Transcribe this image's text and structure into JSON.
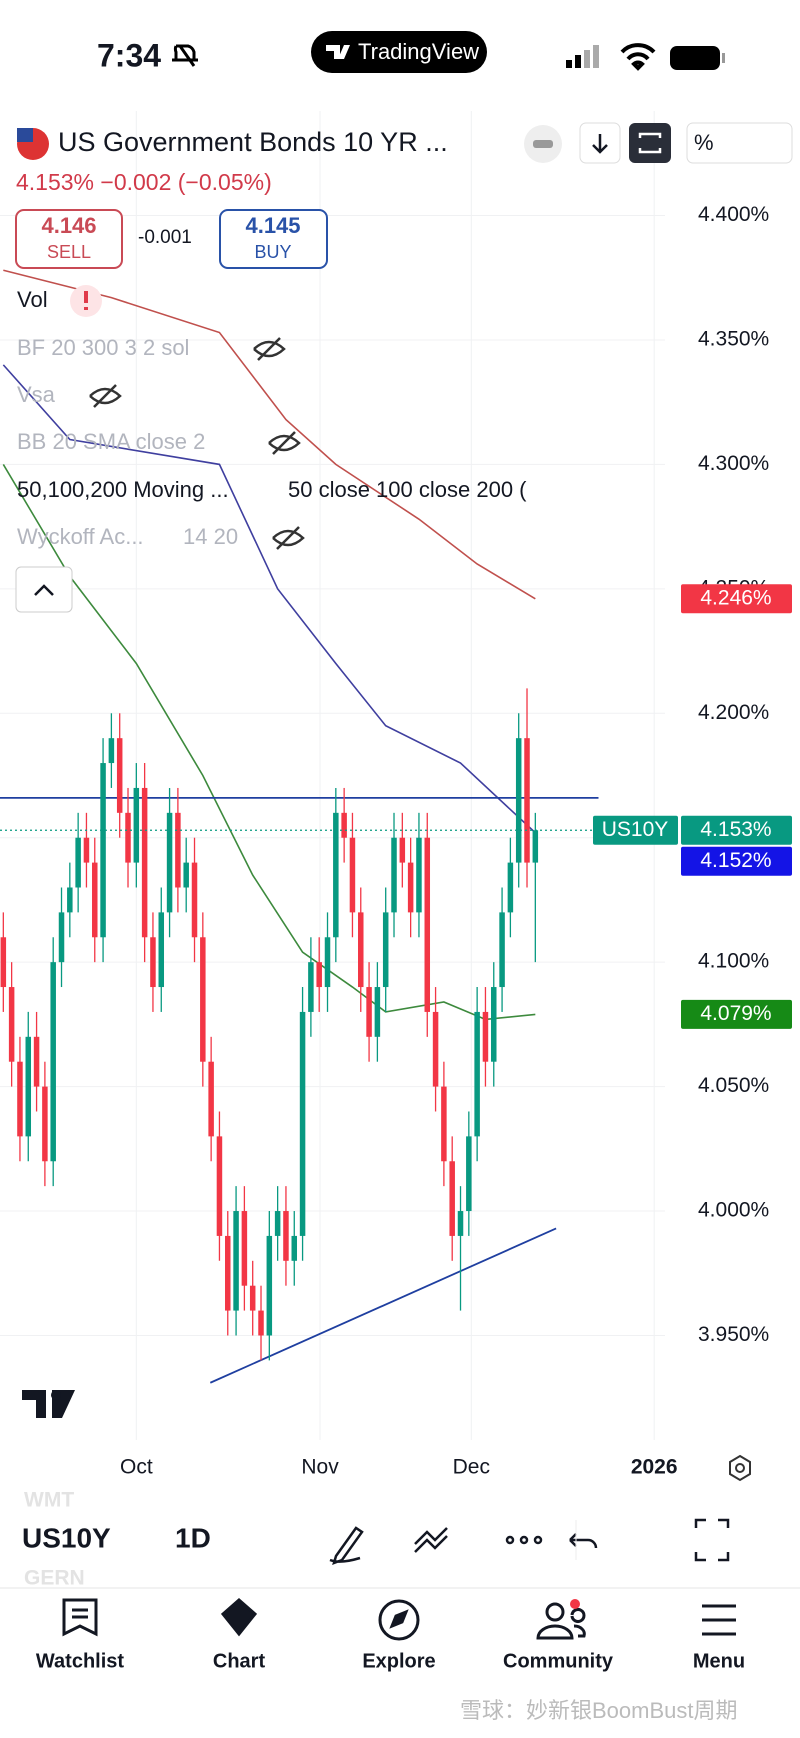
{
  "status_bar": {
    "time": "7:34",
    "app": "TradingView"
  },
  "header": {
    "title": "US Government Bonds 10 YR ...",
    "quote": "4.153%  −0.002 (−0.05%)",
    "unit_button": "%"
  },
  "trade": {
    "sell_price": "4.146",
    "sell": "SELL",
    "spread": "-0.001",
    "buy_price": "4.145",
    "buy": "BUY"
  },
  "indicators": [
    {
      "name": "Vol"
    },
    {
      "name": "BF 20 300 3 2 sol"
    },
    {
      "name": "Vsa"
    },
    {
      "name": "BB 20 SMA close 2"
    },
    {
      "name": "50,100,200 Moving ...",
      "params": "50 close 100 close 200 ("
    },
    {
      "name": "Wyckoff Ac...",
      "params": "14 20"
    }
  ],
  "chart_data": {
    "type": "candlestick",
    "up_color": "#089981",
    "down_color": "#f23645",
    "x": [
      0,
      1,
      2,
      3,
      4,
      5,
      6,
      7,
      8,
      9,
      10,
      11,
      12,
      13,
      14,
      15,
      16,
      17,
      18,
      19,
      20,
      21,
      22,
      23,
      24,
      25,
      26,
      27,
      28,
      29,
      30,
      31,
      32,
      33,
      34,
      35,
      36,
      37,
      38,
      39,
      40,
      41,
      42,
      43,
      44,
      45,
      46,
      47,
      48,
      49,
      50,
      51,
      52,
      53,
      54,
      55,
      56,
      57,
      58,
      59,
      60,
      61,
      62,
      63,
      64
    ],
    "open": [
      4.11,
      4.09,
      4.06,
      4.03,
      4.07,
      4.05,
      4.02,
      4.1,
      4.12,
      4.13,
      4.15,
      4.14,
      4.11,
      4.18,
      4.19,
      4.16,
      4.14,
      4.17,
      4.11,
      4.09,
      4.12,
      4.16,
      4.13,
      4.14,
      4.11,
      4.06,
      4.03,
      3.99,
      3.96,
      4.0,
      3.97,
      3.96,
      3.95,
      3.99,
      4.0,
      3.98,
      3.99,
      4.08,
      4.1,
      4.09,
      4.11,
      4.16,
      4.15,
      4.12,
      4.09,
      4.07,
      4.09,
      4.12,
      4.15,
      4.14,
      4.12,
      4.15,
      4.08,
      4.05,
      4.02,
      3.99,
      4.0,
      4.03,
      4.08,
      4.06,
      4.09,
      4.12,
      4.14,
      4.19,
      4.14
    ],
    "high": [
      4.12,
      4.1,
      4.07,
      4.08,
      4.08,
      4.06,
      4.11,
      4.13,
      4.14,
      4.16,
      4.16,
      4.15,
      4.19,
      4.2,
      4.2,
      4.17,
      4.18,
      4.18,
      4.12,
      4.13,
      4.17,
      4.17,
      4.15,
      4.15,
      4.12,
      4.07,
      4.04,
      4.0,
      4.01,
      4.01,
      3.98,
      3.97,
      4.0,
      4.01,
      4.01,
      4.0,
      4.09,
      4.11,
      4.11,
      4.12,
      4.17,
      4.17,
      4.16,
      4.13,
      4.1,
      4.1,
      4.13,
      4.16,
      4.16,
      4.15,
      4.16,
      4.16,
      4.09,
      4.06,
      4.03,
      4.01,
      4.04,
      4.09,
      4.09,
      4.1,
      4.13,
      4.15,
      4.2,
      4.21,
      4.16
    ],
    "low": [
      4.08,
      4.05,
      4.02,
      4.02,
      4.04,
      4.01,
      4.01,
      4.09,
      4.11,
      4.12,
      4.13,
      4.1,
      4.1,
      4.17,
      4.15,
      4.13,
      4.13,
      4.1,
      4.08,
      4.08,
      4.11,
      4.12,
      4.12,
      4.1,
      4.05,
      4.02,
      3.98,
      3.95,
      3.95,
      3.96,
      3.95,
      3.94,
      3.94,
      3.98,
      3.97,
      3.97,
      3.98,
      4.07,
      4.08,
      4.08,
      4.1,
      4.14,
      4.11,
      4.08,
      4.06,
      4.06,
      4.08,
      4.11,
      4.13,
      4.11,
      4.11,
      4.07,
      4.04,
      4.01,
      3.98,
      3.96,
      3.99,
      4.02,
      4.05,
      4.05,
      4.08,
      4.11,
      4.13,
      4.13,
      4.1
    ],
    "close": [
      4.09,
      4.06,
      4.03,
      4.07,
      4.05,
      4.02,
      4.1,
      4.12,
      4.13,
      4.15,
      4.14,
      4.11,
      4.18,
      4.19,
      4.16,
      4.14,
      4.17,
      4.11,
      4.09,
      4.12,
      4.16,
      4.13,
      4.14,
      4.11,
      4.06,
      4.03,
      3.99,
      3.96,
      4.0,
      3.97,
      3.96,
      3.95,
      3.99,
      4.0,
      3.98,
      3.99,
      4.08,
      4.1,
      4.09,
      4.11,
      4.16,
      4.15,
      4.12,
      4.09,
      4.07,
      4.09,
      4.12,
      4.15,
      4.14,
      4.12,
      4.15,
      4.08,
      4.05,
      4.02,
      3.99,
      4.0,
      4.03,
      4.08,
      4.06,
      4.09,
      4.12,
      4.14,
      4.19,
      4.14,
      4.153
    ],
    "xlim": [
      -0.4,
      79.6
    ],
    "ylim": [
      3.908,
      4.442
    ],
    "yticks": [
      {
        "value": 3.95,
        "label": "3.950%"
      },
      {
        "value": 4.0,
        "label": "4.000%"
      },
      {
        "value": 4.05,
        "label": "4.050%"
      },
      {
        "value": 4.1,
        "label": "4.100%"
      },
      {
        "value": 4.15,
        "label": "4.150%"
      },
      {
        "value": 4.2,
        "label": "4.200%"
      },
      {
        "value": 4.25,
        "label": "4.250%"
      },
      {
        "value": 4.3,
        "label": "4.300%"
      },
      {
        "value": 4.35,
        "label": "4.350%"
      },
      {
        "value": 4.4,
        "label": "4.400%"
      }
    ],
    "xticks": [
      {
        "value": 16,
        "label": "Oct"
      },
      {
        "value": 38.1,
        "label": "Nov"
      },
      {
        "value": 56.3,
        "label": "Dec"
      },
      {
        "value": 78.3,
        "label": "2026"
      }
    ],
    "grid": true,
    "moving_averages": [
      {
        "color": "#c0504d",
        "x": [
          0,
          13,
          26,
          34,
          40,
          50,
          57,
          64
        ],
        "values": [
          4.378,
          4.367,
          4.353,
          4.318,
          4.3,
          4.278,
          4.26,
          4.246
        ]
      },
      {
        "color": "#3f3f9f",
        "x": [
          0,
          8,
          26,
          33,
          40,
          46,
          55,
          64
        ],
        "values": [
          4.34,
          4.31,
          4.3,
          4.25,
          4.22,
          4.195,
          4.18,
          4.152
        ]
      },
      {
        "color": "#3d8a3d",
        "x": [
          0,
          8,
          16,
          24,
          30,
          36,
          42,
          46,
          53,
          58,
          64
        ],
        "values": [
          4.3,
          4.255,
          4.22,
          4.175,
          4.135,
          4.104,
          4.09,
          4.08,
          4.084,
          4.077,
          4.079
        ]
      }
    ],
    "trend_lines": [
      {
        "color": "#1f3fa0",
        "x": [
          -0.4,
          71.6
        ],
        "values": [
          4.166,
          4.166
        ]
      },
      {
        "color": "#1f3fa0",
        "x": [
          24.9,
          66.5
        ],
        "values": [
          3.931,
          3.993
        ]
      }
    ],
    "last_price": 4.153,
    "price_labels": [
      {
        "value": 4.246,
        "label": "4.246%",
        "color": "#f23645"
      },
      {
        "value": 4.153,
        "label": "4.153%",
        "symbol": "US10Y",
        "color": "#089981"
      },
      {
        "value": 4.152,
        "label": "4.152%",
        "color": "#1414e6"
      },
      {
        "value": 4.079,
        "label": "4.079%",
        "color": "#168a16"
      }
    ]
  },
  "toolbar": {
    "above": "WMT",
    "symbol": "US10Y",
    "interval": "1D",
    "below": "GERN"
  },
  "nav": [
    "Watchlist",
    "Chart",
    "Explore",
    "Community",
    "Menu"
  ],
  "watermark": "雪球：妙新银BoomBust周期"
}
